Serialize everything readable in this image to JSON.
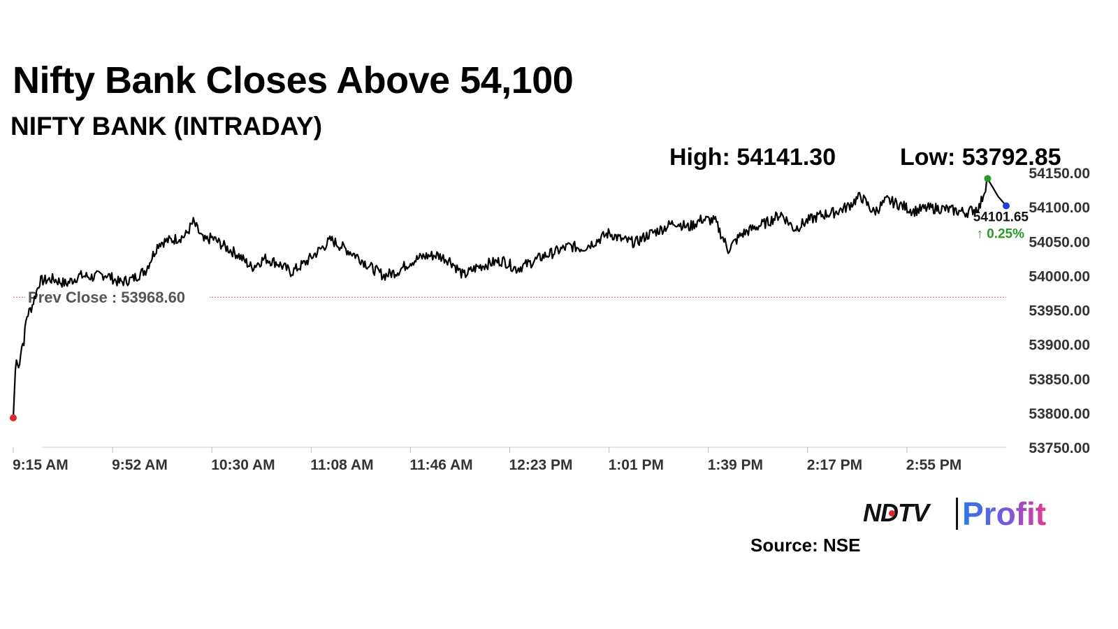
{
  "header": {
    "title": "Nifty Bank Closes Above 54,100",
    "subtitle": "NIFTY BANK (INTRADAY)",
    "high_label": "High: 54141.30",
    "low_label": "Low: 53792.85"
  },
  "chart_data": {
    "type": "line",
    "title": "Nifty Bank Closes Above 54,100",
    "subtitle": "NIFTY BANK (INTRADAY)",
    "xlabel": "",
    "ylabel": "",
    "x_ticks": [
      "9:15 AM",
      "9:52 AM",
      "10:30 AM",
      "11:08 AM",
      "11:46 AM",
      "12:23 PM",
      "1:01 PM",
      "1:39 PM",
      "2:17 PM",
      "2:55 PM"
    ],
    "y_ticks": [
      "53750.00",
      "53800.00",
      "53850.00",
      "53900.00",
      "53950.00",
      "54000.00",
      "54050.00",
      "54100.00",
      "54150.00"
    ],
    "ylim": [
      53750,
      54150
    ],
    "grid": false,
    "prev_close_label": "Prev Close : 53968.60",
    "prev_close": 53968.6,
    "last_value_label": "54101.65",
    "change_label": "↑ 0.25%",
    "high": 54141.3,
    "low": 53792.85,
    "colors": {
      "line": "#000000",
      "prev_close": "#d9534f",
      "low_marker": "#e0262b",
      "high_marker": "#2a9a2a",
      "last_marker": "#1f3fd9",
      "change": "#2a9a2a"
    },
    "series": [
      {
        "minutes": [
          0,
          1,
          2,
          3,
          4,
          5,
          7,
          10,
          15,
          20,
          25,
          30,
          35,
          40,
          45,
          50,
          55,
          60,
          65,
          68,
          72,
          75,
          80,
          85,
          90,
          95,
          100,
          105,
          110,
          115,
          120,
          125,
          130,
          135,
          140,
          145,
          150,
          155,
          160,
          165,
          170,
          175,
          180,
          185,
          190,
          195,
          200,
          205,
          210,
          215,
          220,
          225,
          230,
          235,
          240,
          245,
          250,
          255,
          260,
          265,
          270,
          275,
          280,
          285,
          290,
          295,
          300,
          305,
          310,
          315,
          320,
          325,
          330,
          335,
          340,
          345,
          350,
          355,
          360,
          365,
          368,
          372,
          375
        ],
        "values": [
          53793,
          53880,
          53865,
          53895,
          53905,
          53940,
          53955,
          53992,
          53995,
          53988,
          54000,
          53998,
          54002,
          53990,
          53995,
          54008,
          54048,
          54052,
          54058,
          54078,
          54050,
          54055,
          54042,
          54030,
          54012,
          54025,
          54018,
          54005,
          54018,
          54035,
          54052,
          54040,
          54028,
          54012,
          54000,
          54006,
          54020,
          54028,
          54030,
          54022,
          54000,
          54012,
          54018,
          54022,
          54010,
          54018,
          54028,
          54035,
          54043,
          54040,
          54050,
          54062,
          54052,
          54048,
          54060,
          54068,
          54078,
          54070,
          54082,
          54080,
          54038,
          54060,
          54070,
          54078,
          54090,
          54068,
          54080,
          54088,
          54092,
          54100,
          54116,
          54092,
          54110,
          54103,
          54094,
          54098,
          54098,
          54095,
          54092,
          54100,
          54141,
          54115,
          54101.65
        ]
      }
    ]
  },
  "footer": {
    "brand_ndtv": "NDTV",
    "brand_profit": "Profit",
    "source": "Source: NSE"
  }
}
